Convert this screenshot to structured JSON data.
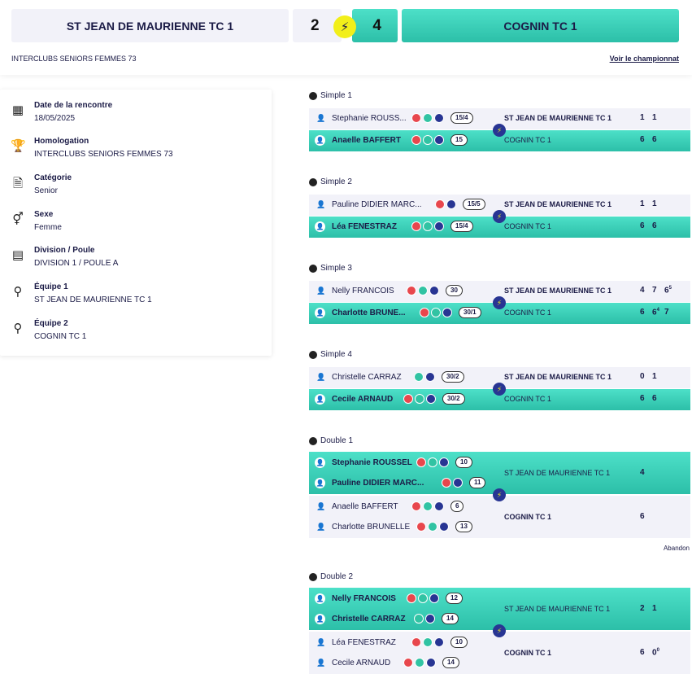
{
  "header": {
    "home_team": "ST JEAN DE MAURIENNE TC 1",
    "home_score": "2",
    "away_score": "4",
    "away_team": "COGNIN TC 1",
    "competition": "INTERCLUBS SENIORS FEMMES 73",
    "link": "Voir le championnat",
    "bolt": "⚡"
  },
  "info": [
    {
      "icon": "calendar-icon",
      "glyph": "▦",
      "label": "Date de la rencontre",
      "value": "18/05/2025"
    },
    {
      "icon": "trophy-icon",
      "glyph": "🏆",
      "label": "Homologation",
      "value": "INTERCLUBS SENIORS FEMMES 73"
    },
    {
      "icon": "document-icon",
      "glyph": "🗎",
      "label": "Catégorie",
      "value": "Senior"
    },
    {
      "icon": "gender-icon",
      "glyph": "⚥",
      "label": "Sexe",
      "value": "Femme"
    },
    {
      "icon": "grid-icon",
      "glyph": "▤",
      "label": "Division / Poule",
      "value": "DIVISION 1 / POULE A"
    },
    {
      "icon": "racket-1-icon",
      "glyph": "⚲",
      "label": "Équipe 1",
      "value": "ST JEAN DE MAURIENNE TC 1"
    },
    {
      "icon": "racket-2-icon",
      "glyph": "⚲",
      "label": "Équipe 2",
      "value": "COGNIN TC 1"
    }
  ],
  "singles": [
    {
      "title": "Simple 1",
      "home": {
        "name": "Stephanie ROUSS...",
        "badges": [
          "r",
          "g",
          "b"
        ],
        "rank": "15/4",
        "team": "ST JEAN DE MAURIENNE TC 1",
        "sets": [
          "1",
          "1"
        ]
      },
      "away": {
        "name": "Anaelle BAFFERT",
        "badges": [
          "r",
          "g",
          "b"
        ],
        "rank": "15",
        "team": "COGNIN TC 1",
        "sets": [
          "6",
          "6"
        ]
      }
    },
    {
      "title": "Simple 2",
      "home": {
        "name": "Pauline DIDIER MARC...",
        "badges": [
          "r",
          "b"
        ],
        "rank": "15/5",
        "team": "ST JEAN DE MAURIENNE TC 1",
        "sets": [
          "1",
          "1"
        ]
      },
      "away": {
        "name": "Léa FENESTRAZ",
        "badges": [
          "r",
          "g",
          "b"
        ],
        "rank": "15/4",
        "team": "COGNIN TC 1",
        "sets": [
          "6",
          "6"
        ]
      }
    },
    {
      "title": "Simple 3",
      "home": {
        "name": "Nelly FRANCOIS",
        "badges": [
          "r",
          "g",
          "b"
        ],
        "rank": "30",
        "team": "ST JEAN DE MAURIENNE TC 1",
        "sets": [
          "4",
          "7",
          "6"
        ],
        "sup": [
          "",
          "",
          "5"
        ]
      },
      "away": {
        "name": "Charlotte BRUNE...",
        "badges": [
          "r",
          "g",
          "b"
        ],
        "rank": "30/1",
        "team": "COGNIN TC 1",
        "sets": [
          "6",
          "6",
          "7"
        ],
        "sup": [
          "",
          "4",
          ""
        ]
      }
    },
    {
      "title": "Simple 4",
      "home": {
        "name": "Christelle CARRAZ",
        "badges": [
          "g",
          "b"
        ],
        "rank": "30/2",
        "team": "ST JEAN DE MAURIENNE TC 1",
        "sets": [
          "0",
          "1"
        ]
      },
      "away": {
        "name": "Cecile ARNAUD",
        "badges": [
          "r",
          "g",
          "b"
        ],
        "rank": "30/2",
        "team": "COGNIN TC 1",
        "sets": [
          "6",
          "6"
        ]
      }
    }
  ],
  "doubles": [
    {
      "title": "Double 1",
      "home": {
        "players": [
          {
            "name": "Stephanie ROUSSEL",
            "badges": [
              "r",
              "g",
              "b"
            ],
            "rank": "10"
          },
          {
            "name": "Pauline DIDIER MARC...",
            "badges": [
              "r",
              "b"
            ],
            "rank": "11"
          }
        ],
        "team": "ST JEAN DE MAURIENNE TC 1",
        "sets": [
          "4"
        ],
        "win": true
      },
      "away": {
        "players": [
          {
            "name": "Anaelle BAFFERT",
            "badges": [
              "r",
              "g",
              "b"
            ],
            "rank": "6"
          },
          {
            "name": "Charlotte BRUNELLE",
            "badges": [
              "r",
              "g",
              "b"
            ],
            "rank": "13"
          }
        ],
        "team": "COGNIN TC 1",
        "sets": [
          "6"
        ],
        "win": false
      },
      "note": "Abandon"
    },
    {
      "title": "Double 2",
      "home": {
        "players": [
          {
            "name": "Nelly FRANCOIS",
            "badges": [
              "r",
              "g",
              "b"
            ],
            "rank": "12"
          },
          {
            "name": "Christelle CARRAZ",
            "badges": [
              "g",
              "b"
            ],
            "rank": "14"
          }
        ],
        "team": "ST JEAN DE MAURIENNE TC 1",
        "sets": [
          "2",
          "1"
        ],
        "win": true
      },
      "away": {
        "players": [
          {
            "name": "Léa FENESTRAZ",
            "badges": [
              "r",
              "g",
              "b"
            ],
            "rank": "10"
          },
          {
            "name": "Cecile ARNAUD",
            "badges": [
              "r",
              "g",
              "b"
            ],
            "rank": "14"
          }
        ],
        "team": "COGNIN TC 1",
        "sets": [
          "6",
          "0"
        ],
        "sup": [
          "",
          "0"
        ],
        "win": false
      }
    }
  ]
}
